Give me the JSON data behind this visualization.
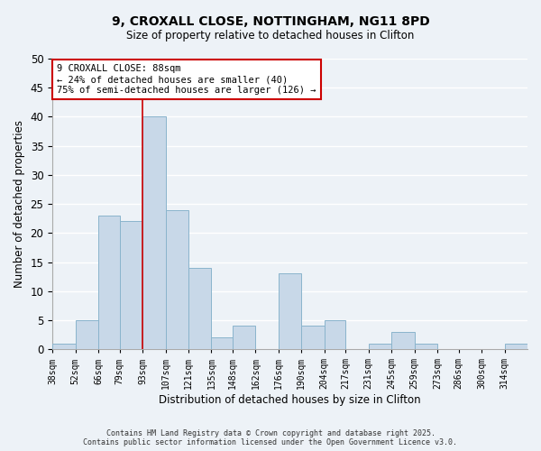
{
  "title1": "9, CROXALL CLOSE, NOTTINGHAM, NG11 8PD",
  "title2": "Size of property relative to detached houses in Clifton",
  "xlabel": "Distribution of detached houses by size in Clifton",
  "ylabel": "Number of detached properties",
  "bin_labels": [
    "38sqm",
    "52sqm",
    "66sqm",
    "79sqm",
    "93sqm",
    "107sqm",
    "121sqm",
    "135sqm",
    "148sqm",
    "162sqm",
    "176sqm",
    "190sqm",
    "204sqm",
    "217sqm",
    "231sqm",
    "245sqm",
    "259sqm",
    "273sqm",
    "286sqm",
    "300sqm",
    "314sqm"
  ],
  "bin_edges": [
    38,
    52,
    66,
    79,
    93,
    107,
    121,
    135,
    148,
    162,
    176,
    190,
    204,
    217,
    231,
    245,
    259,
    273,
    286,
    300,
    314,
    328
  ],
  "counts": [
    1,
    5,
    23,
    22,
    40,
    24,
    14,
    2,
    4,
    0,
    13,
    4,
    5,
    0,
    1,
    3,
    1,
    0,
    0,
    0,
    1
  ],
  "bar_color": "#c8d8e8",
  "bar_edge_color": "#8ab4cc",
  "vline_x": 93,
  "vline_color": "#cc0000",
  "annotation_line1": "9 CROXALL CLOSE: 88sqm",
  "annotation_line2": "← 24% of detached houses are smaller (40)",
  "annotation_line3": "75% of semi-detached houses are larger (126) →",
  "annotation_box_color": "#ffffff",
  "annotation_box_edge": "#cc0000",
  "ylim": [
    0,
    50
  ],
  "yticks": [
    0,
    5,
    10,
    15,
    20,
    25,
    30,
    35,
    40,
    45,
    50
  ],
  "bg_color": "#edf2f7",
  "grid_color": "#ffffff",
  "footer1": "Contains HM Land Registry data © Crown copyright and database right 2025.",
  "footer2": "Contains public sector information licensed under the Open Government Licence v3.0."
}
